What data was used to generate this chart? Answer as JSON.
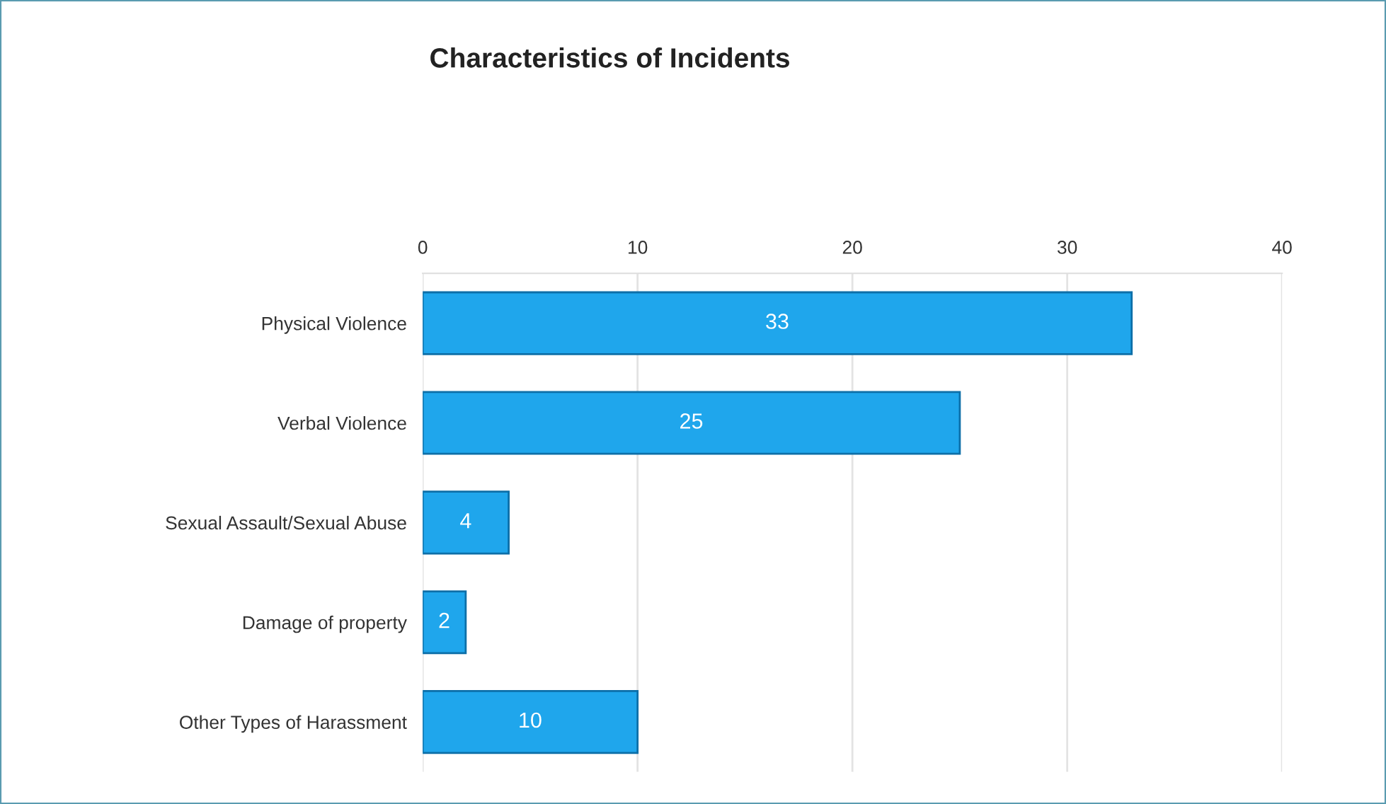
{
  "chart_data": {
    "type": "bar",
    "title": "Characteristics of Incidents",
    "orientation": "horizontal",
    "categories": [
      "Physical Violence",
      "Verbal Violence",
      "Sexual Assault/Sexual Abuse",
      "Damage of property",
      "Other Types of Harassment"
    ],
    "values": [
      33,
      25,
      4,
      2,
      10
    ],
    "color": "#1fa6ec",
    "data_labels": true,
    "xlim": [
      0,
      40
    ],
    "xticks": [
      0,
      10,
      20,
      30,
      40
    ],
    "grid": "x"
  }
}
